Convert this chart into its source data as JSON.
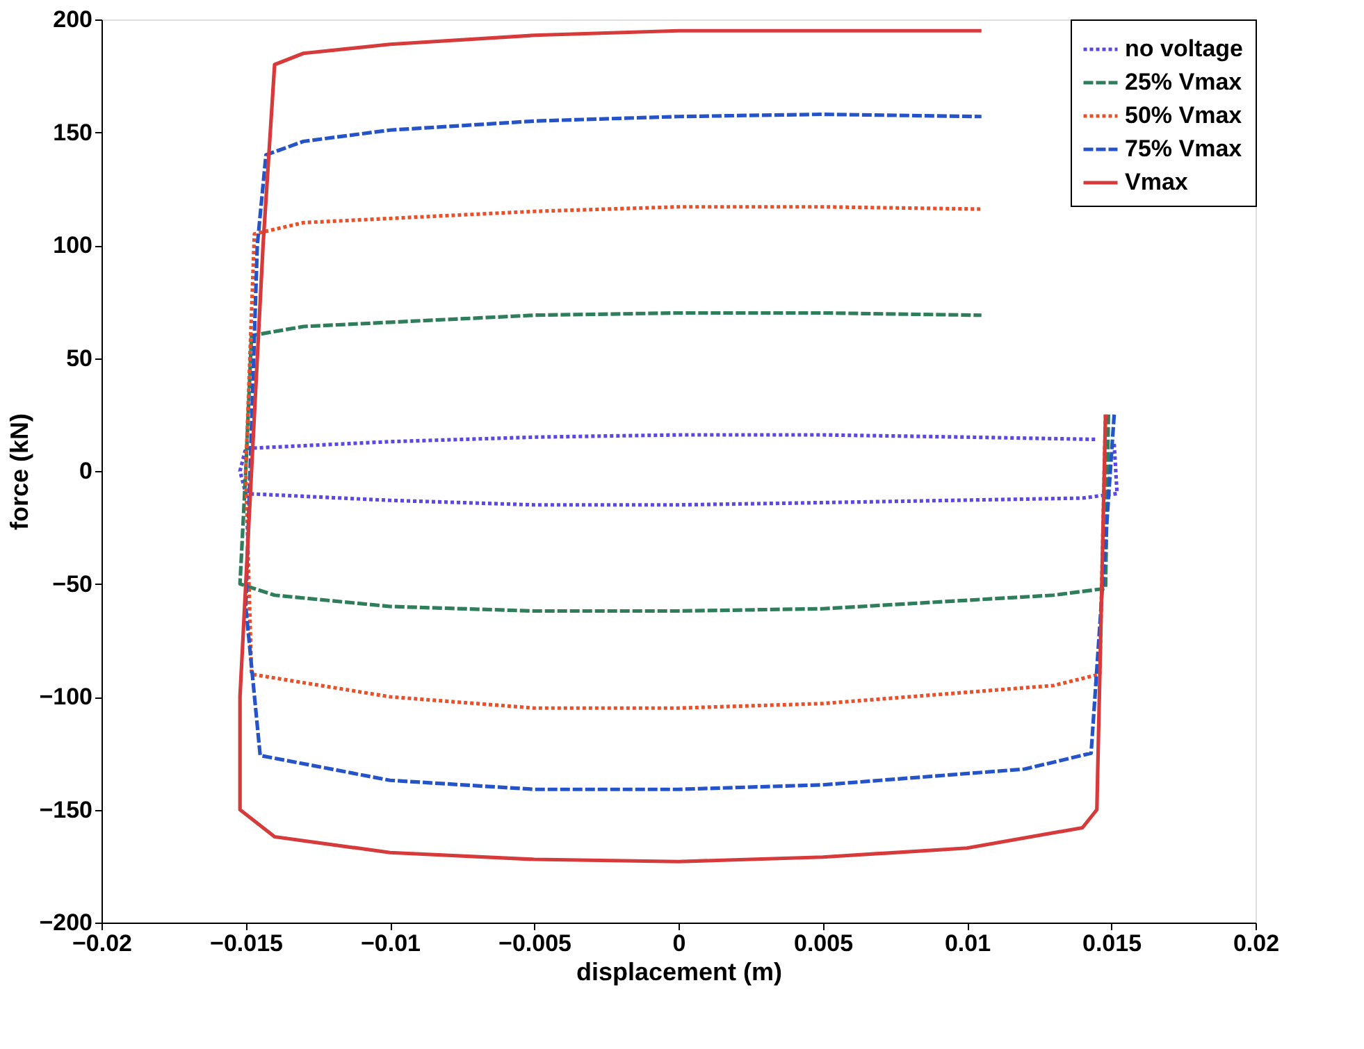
{
  "chart_data": {
    "type": "line",
    "xlabel": "displacement (m)",
    "ylabel": "force (kN)",
    "xlim": [
      -0.02,
      0.02
    ],
    "xticks": [
      -0.02,
      -0.015,
      -0.01,
      -0.005,
      0,
      0.005,
      0.01,
      0.015,
      0.02
    ],
    "ylim": [
      -200,
      200
    ],
    "yticks": [
      -200,
      -150,
      -100,
      -50,
      0,
      50,
      100,
      150,
      200
    ],
    "grid": false,
    "legend": "top right",
    "marker": "none",
    "series": [
      {
        "name": "no voltage",
        "color": "#5b48e0",
        "line_style": "dotted",
        "x": [
          0.0151,
          0.0152,
          0.014,
          0.005,
          0,
          -0.005,
          -0.01,
          -0.015,
          -0.0152,
          -0.015,
          -0.01,
          -0.005,
          0,
          0.005,
          0.01,
          0.0145
        ],
        "values": [
          12,
          -10,
          -12,
          -14,
          -15,
          -15,
          -13,
          -10,
          0,
          10,
          13,
          15,
          16,
          16,
          15,
          14
        ]
      },
      {
        "name": "25% Vmax",
        "color": "#2e7d5b",
        "line_style": "dashed",
        "x": [
          0.0149,
          0.0148,
          0.013,
          0.005,
          0,
          -0.005,
          -0.01,
          -0.014,
          -0.0152,
          -0.015,
          -0.0148,
          -0.013,
          -0.005,
          0,
          0.005,
          0.0105
        ],
        "values": [
          25,
          -52,
          -55,
          -61,
          -62,
          -62,
          -60,
          -55,
          -50,
          0,
          60,
          64,
          69,
          70,
          70,
          69
        ]
      },
      {
        "name": "50% Vmax",
        "color": "#e8502a",
        "line_style": "dotted",
        "x": [
          0.0148,
          0.0146,
          0.013,
          0.005,
          0,
          -0.005,
          -0.01,
          -0.0148,
          -0.015,
          -0.0147,
          -0.013,
          -0.005,
          0,
          0.005,
          0.0105
        ],
        "values": [
          25,
          -90,
          -95,
          -103,
          -105,
          -105,
          -100,
          -90,
          0,
          105,
          110,
          115,
          117,
          117,
          116
        ]
      },
      {
        "name": "75% Vmax",
        "color": "#2553c8",
        "line_style": "dashed",
        "x": [
          0.0151,
          0.0143,
          0.012,
          0.005,
          0,
          -0.005,
          -0.01,
          -0.0145,
          -0.015,
          -0.0146,
          -0.0143,
          -0.013,
          -0.01,
          -0.005,
          0,
          0.005,
          0.0105
        ],
        "values": [
          25,
          -125,
          -132,
          -139,
          -141,
          -141,
          -137,
          -126,
          -60,
          100,
          140,
          146,
          151,
          155,
          157,
          158,
          157
        ]
      },
      {
        "name": "Vmax",
        "color": "#d63a3a",
        "line_style": "solid",
        "x": [
          0.0148,
          0.0145,
          0.014,
          0.01,
          0.005,
          0,
          -0.005,
          -0.01,
          -0.014,
          -0.0152,
          -0.0152,
          -0.0148,
          -0.0144,
          -0.014,
          -0.013,
          -0.01,
          -0.005,
          0,
          0.005,
          0.0105
        ],
        "values": [
          25,
          -150,
          -158,
          -167,
          -171,
          -173,
          -172,
          -169,
          -162,
          -150,
          -100,
          0,
          100,
          180,
          185,
          189,
          193,
          195,
          195,
          195
        ]
      }
    ]
  }
}
